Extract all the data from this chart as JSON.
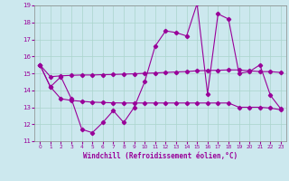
{
  "xlabel": "Windchill (Refroidissement éolien,°C)",
  "bg_color": "#cce8ee",
  "line_color": "#990099",
  "grid_color": "#aad4cc",
  "xlim": [
    -0.5,
    23.5
  ],
  "ylim": [
    11,
    19
  ],
  "yticks": [
    11,
    12,
    13,
    14,
    15,
    16,
    17,
    18,
    19
  ],
  "xticks": [
    0,
    1,
    2,
    3,
    4,
    5,
    6,
    7,
    8,
    9,
    10,
    11,
    12,
    13,
    14,
    15,
    16,
    17,
    18,
    19,
    20,
    21,
    22,
    23
  ],
  "series1_x": [
    0,
    1,
    2,
    3,
    4,
    5,
    6,
    7,
    8,
    9,
    10,
    11,
    12,
    13,
    14,
    15,
    16,
    17,
    18,
    19,
    20,
    21,
    22,
    23
  ],
  "series1_y": [
    15.5,
    14.2,
    14.8,
    13.5,
    11.7,
    11.5,
    12.1,
    12.8,
    12.1,
    13.0,
    14.5,
    16.6,
    17.5,
    17.4,
    17.2,
    19.1,
    13.8,
    18.5,
    18.2,
    15.0,
    15.1,
    15.5,
    13.7,
    12.9
  ],
  "series2_x": [
    0,
    1,
    2,
    3,
    4,
    5,
    6,
    7,
    8,
    9,
    10,
    11,
    12,
    13,
    14,
    15,
    16,
    17,
    18,
    19,
    20,
    21,
    22,
    23
  ],
  "series2_y": [
    15.5,
    14.8,
    14.85,
    14.88,
    14.9,
    14.9,
    14.92,
    14.93,
    14.95,
    14.97,
    15.0,
    15.02,
    15.05,
    15.08,
    15.1,
    15.15,
    15.17,
    15.18,
    15.2,
    15.2,
    15.15,
    15.1,
    15.1,
    15.05
  ],
  "series3_x": [
    0,
    1,
    2,
    3,
    4,
    5,
    6,
    7,
    8,
    9,
    10,
    11,
    12,
    13,
    14,
    15,
    16,
    17,
    18,
    19,
    20,
    21,
    22,
    23
  ],
  "series3_y": [
    15.5,
    14.2,
    13.5,
    13.4,
    13.35,
    13.3,
    13.28,
    13.26,
    13.25,
    13.25,
    13.25,
    13.25,
    13.25,
    13.25,
    13.25,
    13.25,
    13.25,
    13.25,
    13.25,
    13.0,
    13.0,
    13.0,
    12.95,
    12.85
  ]
}
